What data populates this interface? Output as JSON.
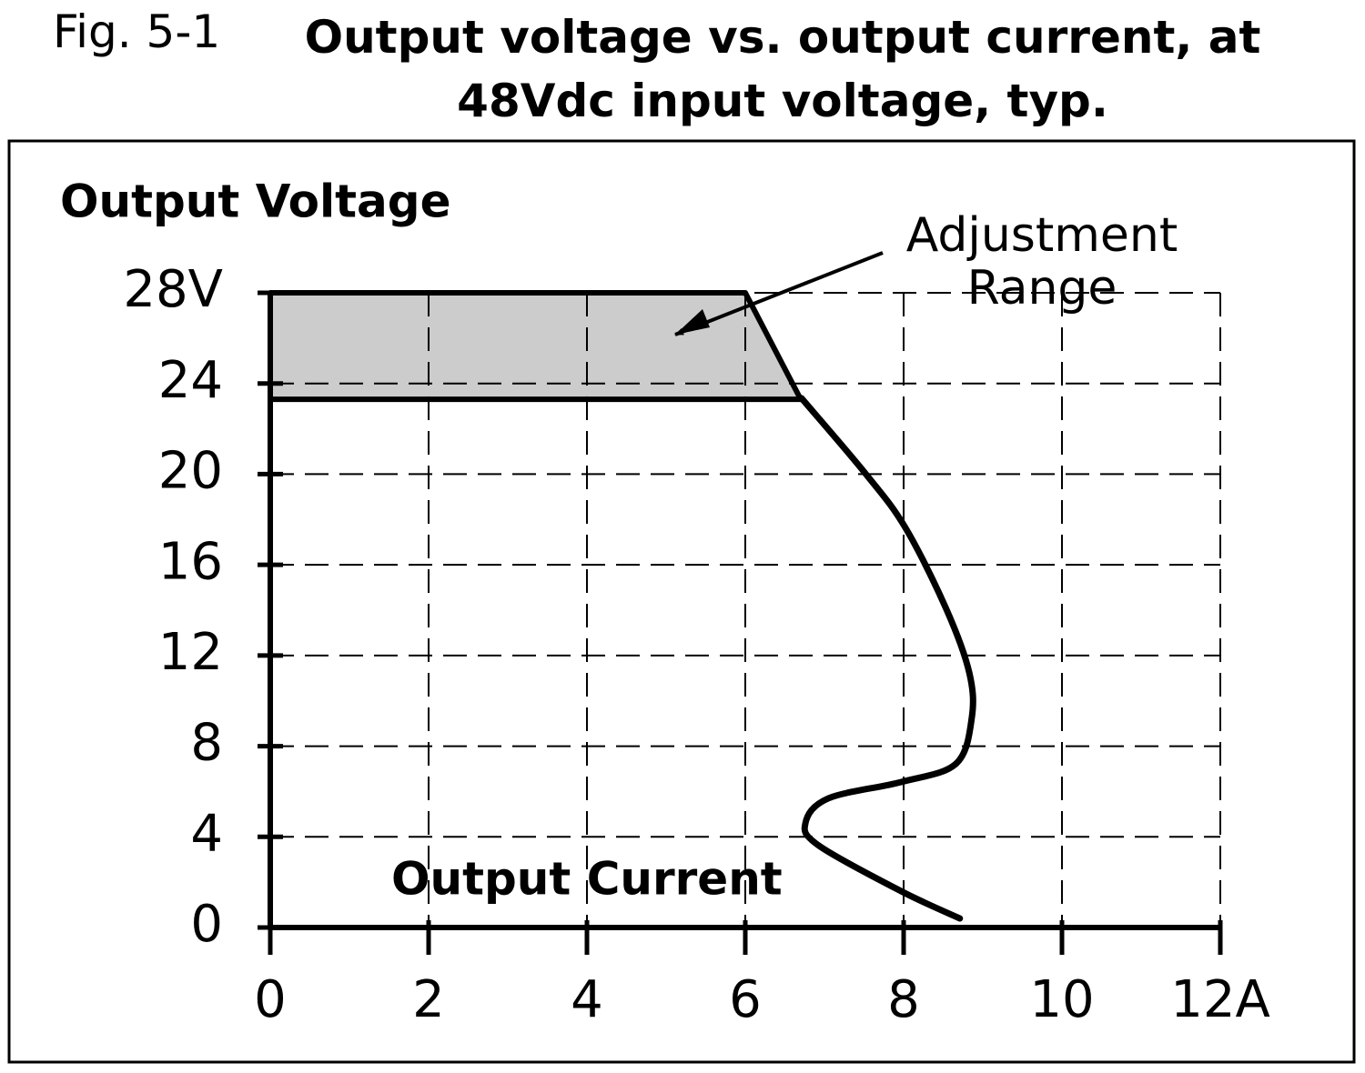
{
  "chart_data": {
    "type": "line",
    "figure_label": "Fig. 5-1",
    "title": "Output voltage vs. output current, at 48Vdc input voltage, typ.",
    "ylabel": "Output Voltage",
    "xlabel": "Output Current",
    "annotation": "Adjustment Range",
    "xlim": [
      0,
      12
    ],
    "ylim": [
      0,
      28
    ],
    "xticks": [
      0,
      2,
      4,
      6,
      8,
      10,
      {
        "value": 12,
        "label": "12A"
      }
    ],
    "yticks": [
      0,
      4,
      8,
      12,
      16,
      20,
      24,
      {
        "value": 28,
        "label": "28V"
      }
    ],
    "grid": true,
    "area": {
      "color": "#cccccc",
      "x": [
        0,
        6,
        6.7,
        0
      ],
      "values": [
        28,
        28,
        23.3,
        23.3
      ]
    },
    "series": [
      {
        "color": "#000000",
        "x": [
          6.71,
          7.51,
          8.02,
          8.54,
          8.83,
          8.86,
          8.66,
          7.97,
          7.05,
          6.76,
          6.93,
          7.97,
          8.71
        ],
        "values": [
          23.35,
          20.06,
          17.65,
          14.04,
          11.23,
          9.23,
          7.22,
          6.42,
          5.7,
          4.61,
          3.61,
          1.6,
          0.4
        ]
      }
    ]
  }
}
